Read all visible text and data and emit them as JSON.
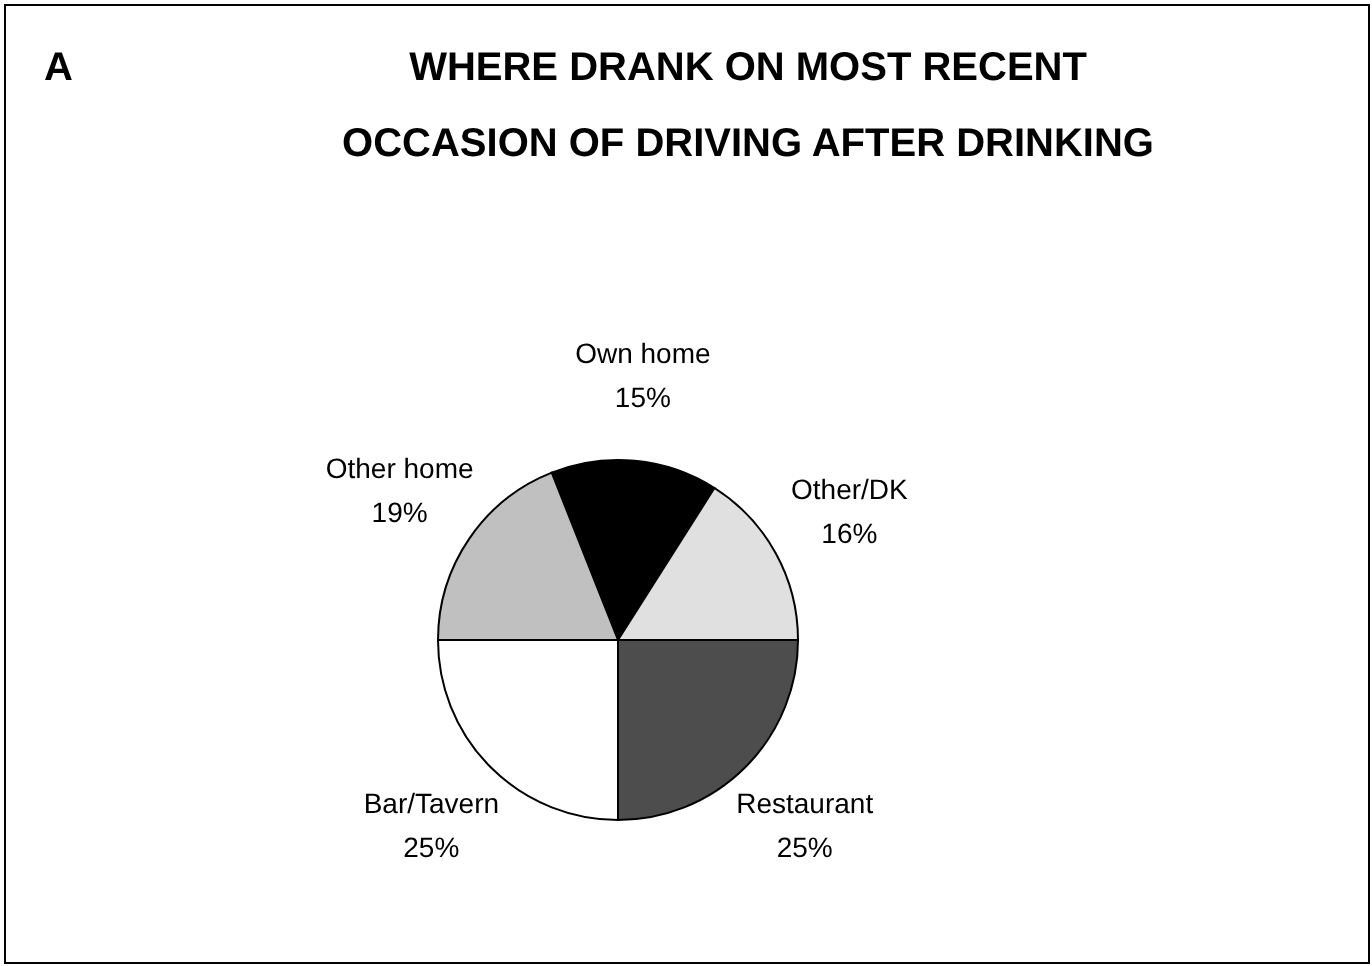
{
  "chart_data": {
    "type": "pie",
    "title": "WHERE DRANK ON MOST RECENT OCCASION OF DRIVING AFTER DRINKING",
    "annotations": [
      "A"
    ],
    "categories": [
      "Own home",
      "Other/DK",
      "Restaurant",
      "Bar/Tavern",
      "Other home"
    ],
    "values": [
      15,
      16,
      25,
      25,
      19
    ],
    "value_labels": [
      "15%",
      "16%",
      "25%",
      "25%",
      "19%"
    ],
    "colors": [
      "#000000",
      "#e0e0e0",
      "#4d4d4d",
      "#ffffff",
      "#c0c0c0"
    ],
    "legend": false
  }
}
